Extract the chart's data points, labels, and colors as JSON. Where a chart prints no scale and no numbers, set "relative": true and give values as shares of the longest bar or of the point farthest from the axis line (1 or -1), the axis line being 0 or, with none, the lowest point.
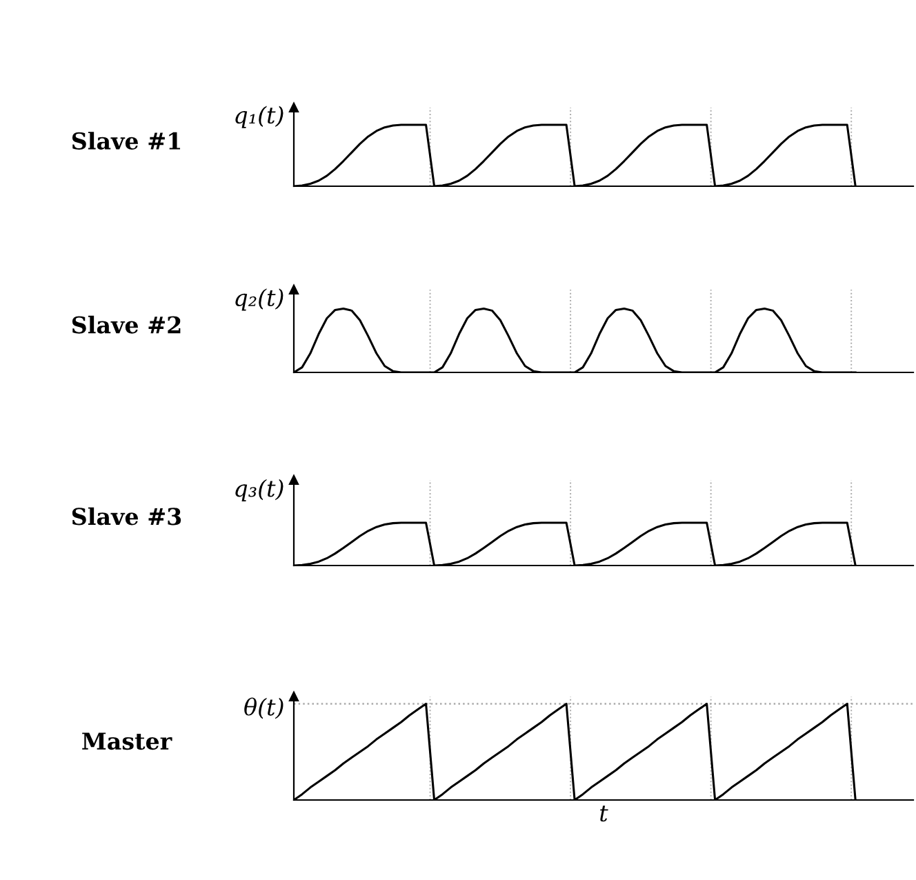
{
  "chart_data": [
    {
      "type": "line",
      "title": "Slave #1",
      "ylabel": "q₁(t)",
      "relative": true,
      "categories": [
        null,
        null,
        null,
        null,
        null,
        null,
        null,
        null,
        null,
        null,
        null,
        null,
        null,
        null,
        null,
        null,
        null,
        null,
        null,
        null,
        null,
        null,
        null,
        null,
        null,
        null,
        null,
        null,
        null,
        null,
        null,
        null,
        null,
        null,
        null,
        null,
        null,
        null,
        null,
        null,
        null,
        null,
        null,
        null,
        null,
        null,
        null,
        null,
        null,
        null,
        null,
        null,
        null,
        null,
        null,
        null,
        null,
        null,
        null,
        null,
        null,
        null,
        null,
        null,
        null,
        null,
        null,
        null,
        null,
        null,
        null,
        null,
        null,
        null,
        null,
        null
      ],
      "series": [
        {
          "color": "#000000",
          "values": [
            0,
            0.01,
            0.04,
            0.09,
            0.17,
            0.28,
            0.41,
            0.55,
            0.69,
            0.81,
            0.9,
            0.96,
            0.99,
            1,
            1,
            1,
            1,
            0,
            0.01,
            0.04,
            0.09,
            0.17,
            0.28,
            0.41,
            0.55,
            0.69,
            0.81,
            0.9,
            0.96,
            0.99,
            1,
            1,
            1,
            1,
            0,
            0.01,
            0.04,
            0.09,
            0.17,
            0.28,
            0.41,
            0.55,
            0.69,
            0.81,
            0.9,
            0.96,
            0.99,
            1,
            1,
            1,
            1,
            0,
            0.01,
            0.04,
            0.09,
            0.17,
            0.28,
            0.41,
            0.55,
            0.69,
            0.81,
            0.9,
            0.96,
            0.99,
            1,
            1,
            1,
            1,
            0,
            null,
            null,
            null,
            null,
            null,
            null,
            null
          ]
        }
      ]
    },
    {
      "type": "line",
      "title": "Slave #2",
      "ylabel": "q₂(t)",
      "relative": true,
      "categories": [
        null,
        null,
        null,
        null,
        null,
        null,
        null,
        null,
        null,
        null,
        null,
        null,
        null,
        null,
        null,
        null,
        null,
        null,
        null,
        null,
        null,
        null,
        null,
        null,
        null,
        null,
        null,
        null,
        null,
        null,
        null,
        null,
        null,
        null,
        null,
        null,
        null,
        null,
        null,
        null,
        null,
        null,
        null,
        null,
        null,
        null,
        null,
        null,
        null,
        null,
        null,
        null,
        null,
        null,
        null,
        null,
        null,
        null,
        null,
        null,
        null,
        null,
        null,
        null,
        null,
        null,
        null,
        null,
        null,
        null,
        null,
        null,
        null,
        null,
        null,
        null
      ],
      "series": [
        {
          "color": "#000000",
          "values": [
            0,
            0.08,
            0.3,
            0.6,
            0.85,
            0.98,
            1,
            0.97,
            0.82,
            0.57,
            0.3,
            0.1,
            0.02,
            0,
            0,
            0,
            0,
            0,
            0.08,
            0.3,
            0.6,
            0.85,
            0.98,
            1,
            0.97,
            0.82,
            0.57,
            0.3,
            0.1,
            0.02,
            0,
            0,
            0,
            0,
            0,
            0.08,
            0.3,
            0.6,
            0.85,
            0.98,
            1,
            0.97,
            0.82,
            0.57,
            0.3,
            0.1,
            0.02,
            0,
            0,
            0,
            0,
            0,
            0.08,
            0.3,
            0.6,
            0.85,
            0.98,
            1,
            0.97,
            0.82,
            0.57,
            0.3,
            0.1,
            0.02,
            0,
            0,
            0,
            0,
            0,
            null,
            null,
            null,
            null,
            null,
            null,
            null
          ]
        }
      ]
    },
    {
      "type": "line",
      "title": "Slave #3",
      "ylabel": "q₃(t)",
      "relative": true,
      "categories": [
        null,
        null,
        null,
        null,
        null,
        null,
        null,
        null,
        null,
        null,
        null,
        null,
        null,
        null,
        null,
        null,
        null,
        null,
        null,
        null,
        null,
        null,
        null,
        null,
        null,
        null,
        null,
        null,
        null,
        null,
        null,
        null,
        null,
        null,
        null,
        null,
        null,
        null,
        null,
        null,
        null,
        null,
        null,
        null,
        null,
        null,
        null,
        null,
        null,
        null,
        null,
        null,
        null,
        null,
        null,
        null,
        null,
        null,
        null,
        null,
        null,
        null,
        null,
        null,
        null,
        null,
        null,
        null,
        null,
        null,
        null,
        null,
        null,
        null,
        null,
        null
      ],
      "series": [
        {
          "color": "#000000",
          "values": [
            0,
            0.01,
            0.04,
            0.09,
            0.17,
            0.28,
            0.41,
            0.55,
            0.69,
            0.81,
            0.9,
            0.96,
            0.99,
            1,
            1,
            1,
            1,
            0,
            0.01,
            0.04,
            0.09,
            0.17,
            0.28,
            0.41,
            0.55,
            0.69,
            0.81,
            0.9,
            0.96,
            0.99,
            1,
            1,
            1,
            1,
            0,
            0.01,
            0.04,
            0.09,
            0.17,
            0.28,
            0.41,
            0.55,
            0.69,
            0.81,
            0.9,
            0.96,
            0.99,
            1,
            1,
            1,
            1,
            0,
            0.01,
            0.04,
            0.09,
            0.17,
            0.28,
            0.41,
            0.55,
            0.69,
            0.81,
            0.9,
            0.96,
            0.99,
            1,
            1,
            1,
            1,
            0,
            null,
            null,
            null,
            null,
            null,
            null,
            null
          ]
        }
      ]
    },
    {
      "type": "line",
      "title": "Master",
      "ylabel": "θ(t)",
      "xlabel": "t",
      "relative": true,
      "categories": [
        null,
        null,
        null,
        null,
        null,
        null,
        null,
        null,
        null,
        null,
        null,
        null,
        null,
        null,
        null,
        null,
        null,
        null,
        null,
        null,
        null,
        null,
        null,
        null,
        null,
        null,
        null,
        null,
        null,
        null,
        null,
        null,
        null,
        null,
        null,
        null,
        null,
        null,
        null,
        null,
        null,
        null,
        null,
        null,
        null,
        null,
        null,
        null,
        null,
        null,
        null,
        null,
        null,
        null,
        null,
        null,
        null,
        null,
        null,
        null,
        null,
        null,
        null,
        null,
        null,
        null,
        null,
        null,
        null,
        null,
        null,
        null,
        null,
        null,
        null,
        null
      ],
      "series": [
        {
          "color": "#000000",
          "values": [
            0,
            0.06,
            0.13,
            0.19,
            0.25,
            0.31,
            0.38,
            0.44,
            0.5,
            0.56,
            0.63,
            0.69,
            0.75,
            0.81,
            0.88,
            0.94,
            1,
            0,
            0.06,
            0.13,
            0.19,
            0.25,
            0.31,
            0.38,
            0.44,
            0.5,
            0.56,
            0.63,
            0.69,
            0.75,
            0.81,
            0.88,
            0.94,
            1,
            0,
            0.06,
            0.13,
            0.19,
            0.25,
            0.31,
            0.38,
            0.44,
            0.5,
            0.56,
            0.63,
            0.69,
            0.75,
            0.81,
            0.88,
            0.94,
            1,
            0,
            0.06,
            0.13,
            0.19,
            0.25,
            0.31,
            0.38,
            0.44,
            0.5,
            0.56,
            0.63,
            0.69,
            0.75,
            0.81,
            0.88,
            0.94,
            1,
            0,
            null,
            null,
            null,
            null,
            null,
            null,
            null
          ]
        }
      ],
      "ref_lines": [
        {
          "axis": "y",
          "value": 1,
          "color": "#aaaaaa",
          "line_style": "dotted"
        }
      ]
    }
  ]
}
